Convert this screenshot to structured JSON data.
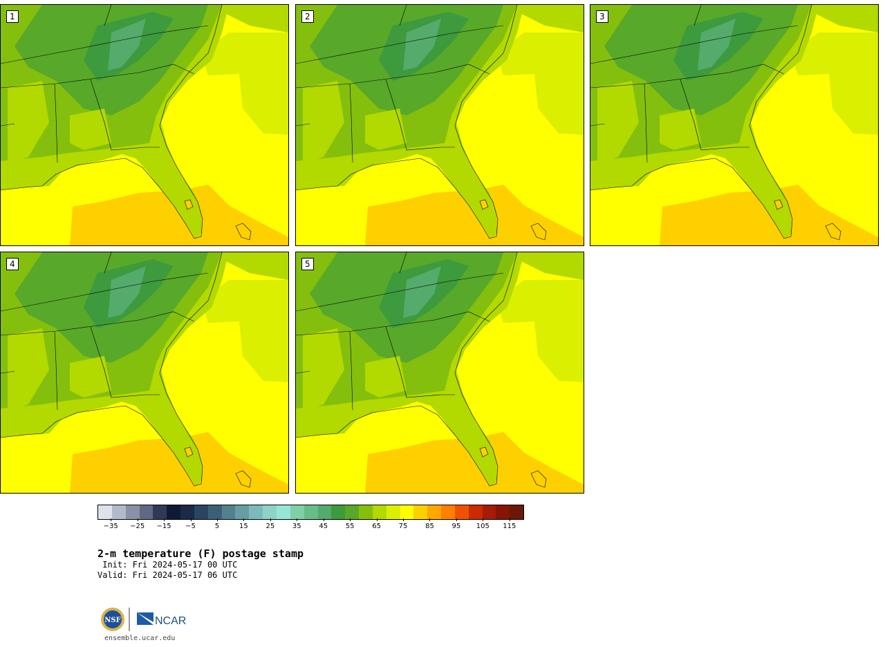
{
  "panels": [
    {
      "label": "1"
    },
    {
      "label": "2"
    },
    {
      "label": "3"
    },
    {
      "label": "4"
    },
    {
      "label": "5"
    }
  ],
  "colorbar": {
    "colors": [
      "#dde3ea",
      "#b3b9c8",
      "#8a91a6",
      "#5f6984",
      "#2f3a58",
      "#121a33",
      "#1a2a48",
      "#2a4560",
      "#3d5f76",
      "#52808e",
      "#679ea4",
      "#7dbaba",
      "#8fd2c7",
      "#97e6d5",
      "#7fd0a7",
      "#68bd86",
      "#54ab6c",
      "#3d9a3d",
      "#58a82a",
      "#84bf0e",
      "#b2d900",
      "#dbef00",
      "#ffff00",
      "#ffd000",
      "#ffa800",
      "#ff7f00",
      "#ee5200",
      "#cc2a00",
      "#a61b08",
      "#861508",
      "#6a1808"
    ],
    "tick_labels": [
      "−35",
      "−25",
      "−15",
      "−5",
      "5",
      "15",
      "25",
      "35",
      "45",
      "55",
      "65",
      "75",
      "85",
      "95",
      "105",
      "115"
    ],
    "min": -40,
    "max": 120
  },
  "title": "2-m temperature (F) postage stamp",
  "init": " Init: Fri 2024-05-17 00 UTC",
  "valid": "Valid: Fri 2024-05-17 06 UTC",
  "site": "ensemble.ucar.edu",
  "logos": {
    "nsf": "NSF",
    "ncar": "NCAR"
  }
}
